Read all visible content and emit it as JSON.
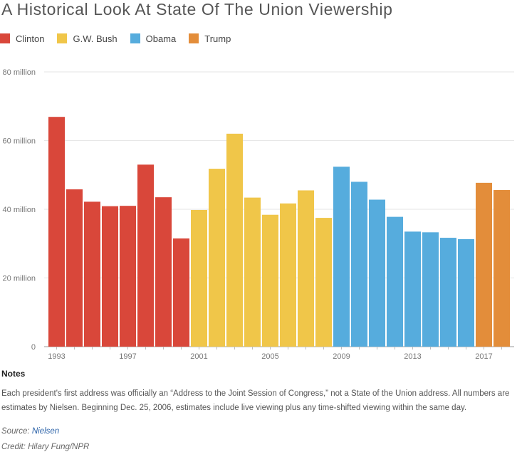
{
  "chart_data": {
    "type": "bar",
    "title": "A Historical Look At State Of The Union Viewership",
    "legend_placement": "top-left",
    "legend": [
      {
        "name": "Clinton",
        "color": "#d9473a"
      },
      {
        "name": "G.W. Bush",
        "color": "#f0c649"
      },
      {
        "name": "Obama",
        "color": "#56acdd"
      },
      {
        "name": "Trump",
        "color": "#e38d3a"
      }
    ],
    "years": [
      1993,
      1994,
      1995,
      1996,
      1997,
      1998,
      1999,
      2000,
      2001,
      2002,
      2003,
      2004,
      2005,
      2006,
      2007,
      2008,
      2009,
      2010,
      2011,
      2012,
      2013,
      2014,
      2015,
      2016,
      2017,
      2018
    ],
    "values": [
      66.9,
      45.8,
      42.2,
      40.9,
      41.0,
      53.0,
      43.5,
      31.5,
      39.8,
      51.8,
      62.0,
      43.4,
      38.4,
      41.7,
      45.5,
      37.5,
      52.4,
      48.0,
      42.8,
      37.8,
      33.5,
      33.3,
      31.7,
      31.3,
      47.7,
      45.6
    ],
    "president_index": [
      0,
      0,
      0,
      0,
      0,
      0,
      0,
      0,
      1,
      1,
      1,
      1,
      1,
      1,
      1,
      1,
      2,
      2,
      2,
      2,
      2,
      2,
      2,
      2,
      3,
      3
    ],
    "y_ticks": [
      {
        "value": 0,
        "label": "0"
      },
      {
        "value": 20,
        "label": "20 million"
      },
      {
        "value": 40,
        "label": "40 million"
      },
      {
        "value": 60,
        "label": "60 million"
      },
      {
        "value": 80,
        "label": "80 million"
      }
    ],
    "x_tick_labels": [
      {
        "year": 1993,
        "label": "1993"
      },
      {
        "year": 1997,
        "label": "1997"
      },
      {
        "year": 2001,
        "label": "2001"
      },
      {
        "year": 2005,
        "label": "2005"
      },
      {
        "year": 2009,
        "label": "2009"
      },
      {
        "year": 2013,
        "label": "2013"
      },
      {
        "year": 2017,
        "label": "2017"
      }
    ],
    "ylim": [
      0,
      80
    ],
    "grid": true
  },
  "notes": {
    "title": "Notes",
    "body": "Each president's first address was officially an “Address to the Joint Session of Congress,” not a State of the Union address. All numbers are estimates by Nielsen. Beginning Dec. 25, 2006, estimates include live viewing plus any time-shifted viewing within the same day."
  },
  "source": {
    "prefix": "Source: ",
    "link_text": "Nielsen"
  },
  "credit": "Credit: Hilary Fung/NPR"
}
